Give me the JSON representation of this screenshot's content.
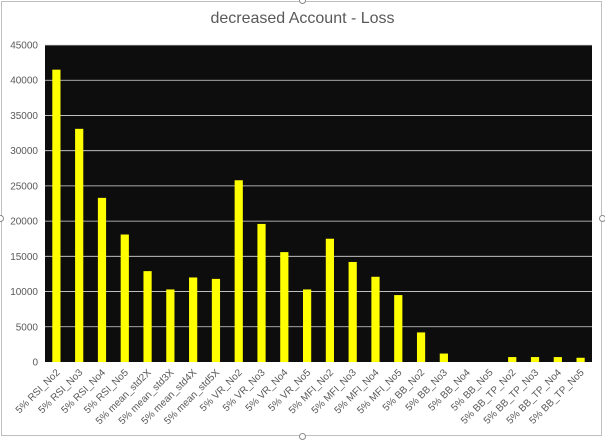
{
  "chart_data": {
    "type": "bar",
    "title": "decreased Account - Loss",
    "xlabel": "",
    "ylabel": "",
    "ylim": [
      0,
      45000
    ],
    "ytick_step": 5000,
    "grid": true,
    "legend": "none",
    "colors": {
      "bar": "#ffff00",
      "plot_bg": "#0d0d0d",
      "grid": "#d9d9d9",
      "text": "#595959"
    },
    "categories": [
      "5% RSI_No2",
      "5% RSI_No3",
      "5% RSI_No4",
      "5% RSI_No5",
      "5% mean_std2X",
      "5% mean_std3X",
      "5% mean_std4X",
      "5% mean_std5X",
      "5% VR_No2",
      "5% VR_No3",
      "5% VR_No4",
      "5% VR_No5",
      "5% MFI_No2",
      "5% MFI_No3",
      "5% MFI_No4",
      "5% MFI_No5",
      "5% BB_No2",
      "5% BB_No3",
      "5% BB_No4",
      "5% BB_No5",
      "5% BB_TP_No2",
      "5% BB_TP_No3",
      "5% BB_TP_No4",
      "5% BB_TP_No5"
    ],
    "values": [
      41500,
      33100,
      23300,
      18100,
      12900,
      10300,
      12000,
      11800,
      25800,
      19600,
      15600,
      10300,
      17500,
      14200,
      12100,
      9500,
      4200,
      1200,
      0,
      0,
      700,
      700,
      700,
      600
    ]
  }
}
